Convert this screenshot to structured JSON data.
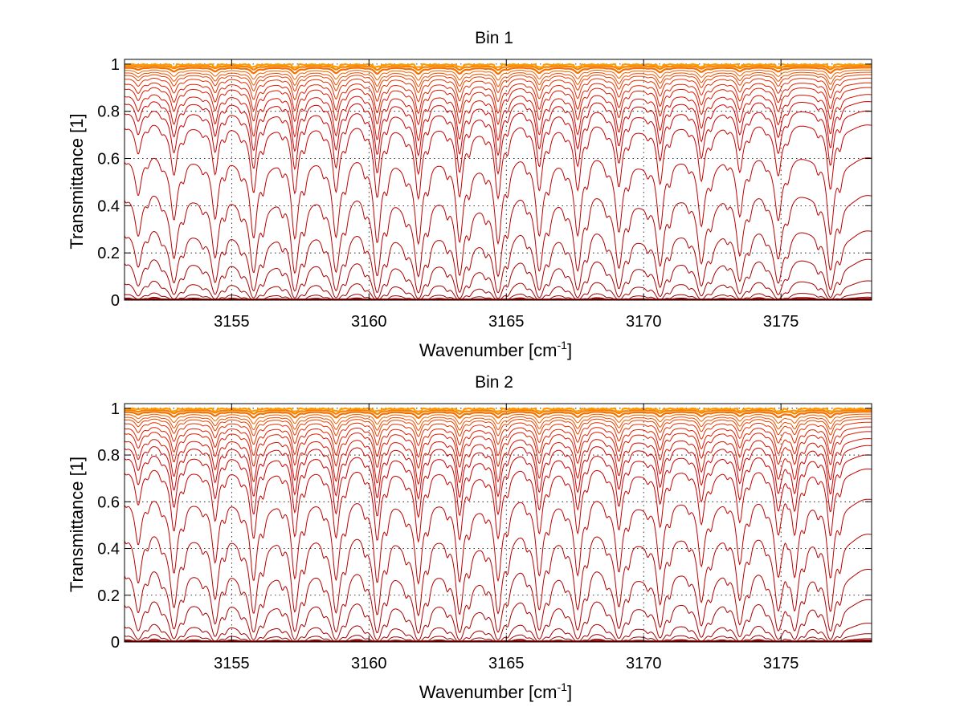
{
  "chart_data": [
    {
      "type": "line",
      "title": "Bin 1",
      "xlabel": "Wavenumber [cm",
      "xlabel_sup": "-1",
      "xlabel_end": "]",
      "ylabel": "Transmittance [1]",
      "xlim": [
        3151.1,
        3178.3
      ],
      "ylim": [
        0,
        1.02
      ],
      "xticks": [
        3155,
        3160,
        3165,
        3170,
        3175
      ],
      "xtick_labels": [
        "3155",
        "3160",
        "3165",
        "3170",
        "3175"
      ],
      "yticks": [
        0,
        0.2,
        0.4,
        0.6,
        0.8,
        1
      ],
      "ytick_labels": [
        "0",
        "0.2",
        "0.4",
        "0.6",
        "0.8",
        "1"
      ],
      "grid": true,
      "absorption_lines_cm1": [
        3151.6,
        3152.9,
        3154.4,
        3155.8,
        3157.3,
        3158.8,
        3160.3,
        3161.8,
        3163.3,
        3164.7,
        3166.2,
        3167.6,
        3169.1,
        3170.6,
        3172.1,
        3173.5,
        3174.9,
        3176.8
      ],
      "line_depth_factor": [
        0.35,
        0.6,
        0.65,
        0.9,
        0.95,
        0.85,
        1.0,
        1.0,
        1.0,
        1.0,
        0.85,
        0.85,
        0.8,
        0.8,
        0.7,
        0.6,
        0.6,
        0.9
      ],
      "series_baselines": [
        0.0,
        0.005,
        0.012,
        0.03,
        0.08,
        0.17,
        0.29,
        0.44,
        0.6,
        0.74,
        0.8,
        0.84,
        0.87,
        0.9,
        0.92,
        0.94,
        0.955,
        0.965,
        0.975,
        0.985,
        0.993,
        1.0
      ],
      "series_colors": [
        "#8b0000",
        "#8b0000",
        "#950000",
        "#9e0000",
        "#a50000",
        "#aa0000",
        "#b20000",
        "#b80000",
        "#c00000",
        "#c80000",
        "#cc0000",
        "#d00000",
        "#d81000",
        "#de1a00",
        "#e22000",
        "#e63000",
        "#ea4000",
        "#ee5000",
        "#f26000",
        "#f57000",
        "#f88000",
        "#ff9900"
      ]
    },
    {
      "type": "line",
      "title": "Bin 2",
      "xlabel": "Wavenumber [cm",
      "xlabel_sup": "-1",
      "xlabel_end": "]",
      "ylabel": "Transmittance [1]",
      "xlim": [
        3151.1,
        3178.3
      ],
      "ylim": [
        0,
        1.02
      ],
      "xticks": [
        3155,
        3160,
        3165,
        3170,
        3175
      ],
      "xtick_labels": [
        "3155",
        "3160",
        "3165",
        "3170",
        "3175"
      ],
      "yticks": [
        0,
        0.2,
        0.4,
        0.6,
        0.8,
        1
      ],
      "ytick_labels": [
        "0",
        "0.2",
        "0.4",
        "0.6",
        "0.8",
        "1"
      ],
      "grid": true,
      "absorption_lines_cm1": [
        3151.6,
        3152.9,
        3154.4,
        3155.8,
        3157.3,
        3158.8,
        3160.3,
        3161.8,
        3163.3,
        3164.7,
        3166.2,
        3167.6,
        3169.1,
        3170.6,
        3172.1,
        3173.5,
        3174.9,
        3175.5,
        3176.8
      ],
      "line_depth_factor": [
        0.45,
        0.8,
        0.7,
        0.95,
        0.95,
        0.9,
        1.0,
        1.0,
        1.0,
        0.95,
        0.85,
        0.85,
        0.8,
        0.8,
        0.7,
        0.7,
        0.8,
        0.85,
        0.95
      ],
      "series_baselines": [
        0.0,
        0.006,
        0.014,
        0.035,
        0.08,
        0.18,
        0.31,
        0.46,
        0.61,
        0.74,
        0.8,
        0.84,
        0.87,
        0.9,
        0.92,
        0.94,
        0.955,
        0.965,
        0.975,
        0.985,
        0.993,
        1.0
      ],
      "series_colors": [
        "#8b0000",
        "#8b0000",
        "#950000",
        "#9e0000",
        "#a50000",
        "#aa0000",
        "#b20000",
        "#b80000",
        "#c00000",
        "#c80000",
        "#cc0000",
        "#d00000",
        "#d81000",
        "#de1a00",
        "#e22000",
        "#e63000",
        "#ea4000",
        "#ee5000",
        "#f26000",
        "#f57000",
        "#f88000",
        "#ff9900"
      ]
    }
  ]
}
